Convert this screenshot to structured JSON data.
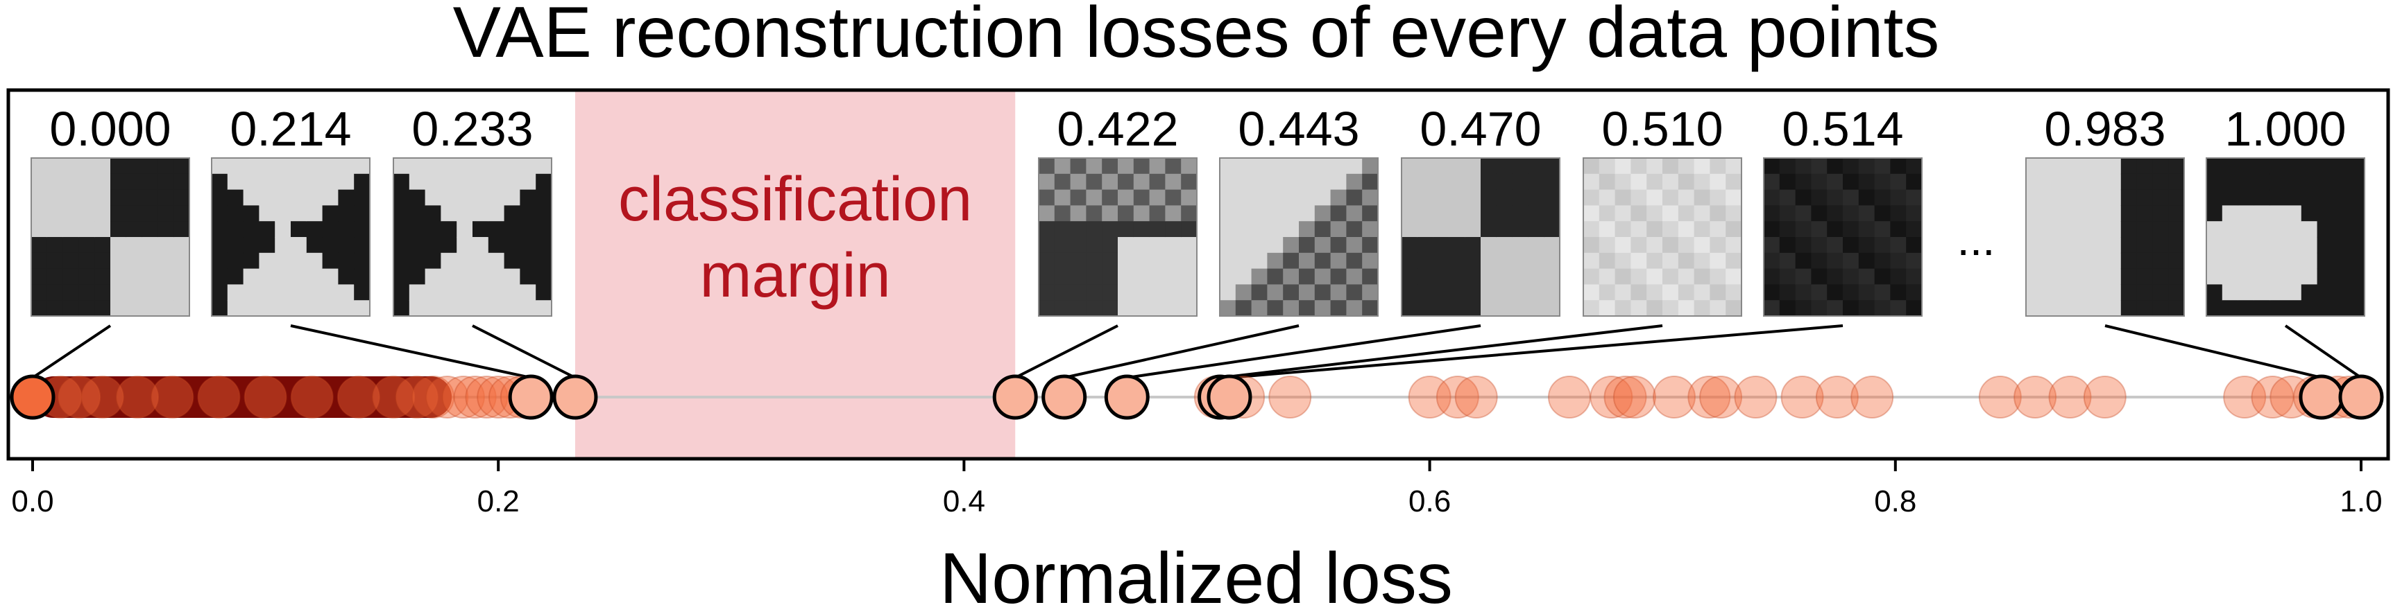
{
  "chart_data": {
    "type": "scatter",
    "title": "VAE reconstruction losses of every data points",
    "xlabel": "Normalized loss",
    "ylabel": "",
    "xlim": [
      0.0,
      1.0
    ],
    "xticks": [
      "0.0",
      "0.2",
      "0.4",
      "0.6",
      "0.8",
      "1.0"
    ],
    "tick_values": [
      0.0,
      0.2,
      0.4,
      0.6,
      0.8,
      1.0
    ],
    "grid": false,
    "legend": "none",
    "margin": {
      "label_line1": "classification",
      "label_line2": "margin",
      "range": [
        0.233,
        0.422
      ]
    },
    "ellipsis": "...",
    "colors": {
      "margin_fill": "#f7cfd2",
      "margin_text": "#b3141e",
      "dense": "#7a0a05",
      "point": "#f26a3a",
      "point_alpha": 0.4,
      "highlight_fill": "#f9b39a",
      "axis_line": "#c8c8c8"
    },
    "dense_range": [
      0.0,
      0.18
    ],
    "points": [
      0.012,
      0.02,
      0.03,
      0.045,
      0.06,
      0.08,
      0.1,
      0.12,
      0.14,
      0.155,
      0.165,
      0.172,
      0.178,
      0.185,
      0.19,
      0.195,
      0.2,
      0.205,
      0.21,
      0.214,
      0.233,
      0.422,
      0.443,
      0.47,
      0.508,
      0.51,
      0.512,
      0.514,
      0.52,
      0.54,
      0.6,
      0.612,
      0.62,
      0.66,
      0.678,
      0.684,
      0.688,
      0.705,
      0.72,
      0.725,
      0.74,
      0.76,
      0.775,
      0.79,
      0.845,
      0.86,
      0.875,
      0.89,
      0.95,
      0.962,
      0.97,
      0.98,
      0.99,
      0.995
    ],
    "labeled_samples": [
      {
        "value": 0.0,
        "label": "0.000",
        "pattern": "checker"
      },
      {
        "value": 0.214,
        "label": "0.214",
        "pattern": "bowtie"
      },
      {
        "value": 0.233,
        "label": "0.233",
        "pattern": "bowtie"
      },
      {
        "value": 0.422,
        "label": "0.422",
        "pattern": "grid-blob"
      },
      {
        "value": 0.443,
        "label": "0.443",
        "pattern": "diag-blob"
      },
      {
        "value": 0.47,
        "label": "0.470",
        "pattern": "checker-soft"
      },
      {
        "value": 0.51,
        "label": "0.510",
        "pattern": "noise-light"
      },
      {
        "value": 0.514,
        "label": "0.514",
        "pattern": "noise-dark"
      },
      {
        "value": 0.983,
        "label": "0.983",
        "pattern": "half-split"
      },
      {
        "value": 1.0,
        "label": "1.000",
        "pattern": "corner-blob"
      }
    ]
  }
}
